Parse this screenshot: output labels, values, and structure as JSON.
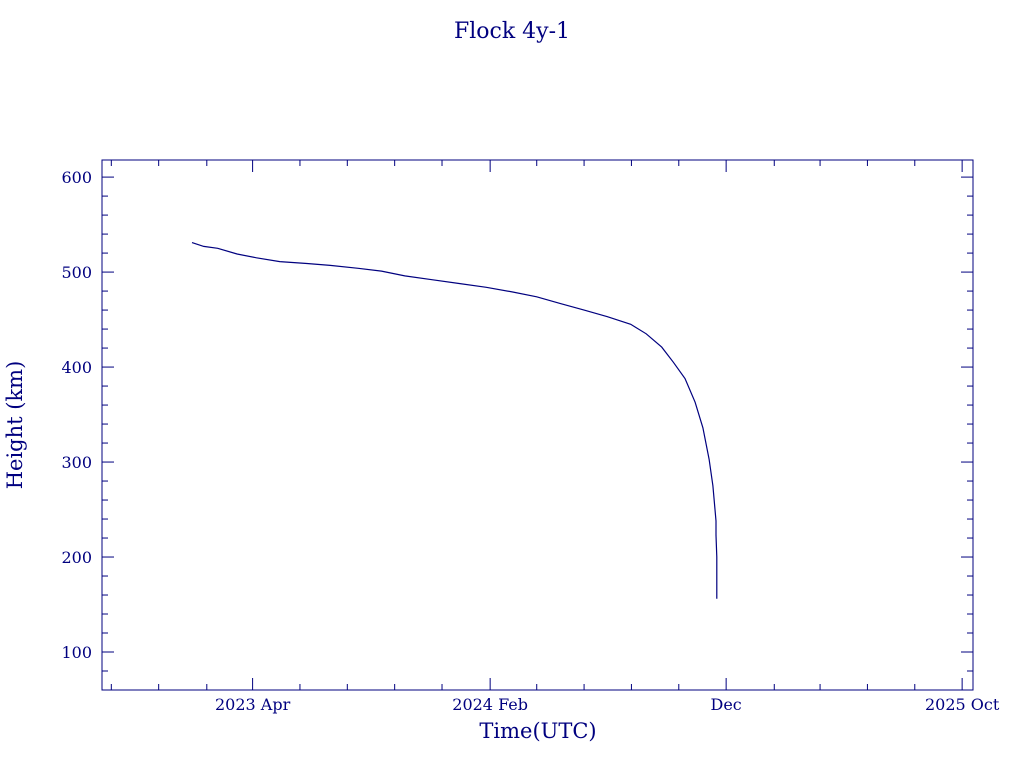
{
  "chart_data": {
    "type": "line",
    "title": "Flock 4y-1",
    "xlabel": "Time(UTC)",
    "ylabel": "Height (km)",
    "color": "#00007f",
    "xlim": [
      "2022-09-19",
      "2025-10-15"
    ],
    "ylim": [
      60,
      618
    ],
    "x_ticks": [
      {
        "date": "2023-04-01",
        "label": "2023 Apr"
      },
      {
        "date": "2024-02-01",
        "label": "2024 Feb"
      },
      {
        "date": "2024-12-01",
        "label": "Dec"
      },
      {
        "date": "2025-10-01",
        "label": "2025 Oct"
      }
    ],
    "y_ticks": [
      100,
      200,
      300,
      400,
      500,
      600
    ],
    "grid": false,
    "series": [
      {
        "points": [
          [
            "2023-01-13",
            531
          ],
          [
            "2023-01-28",
            527
          ],
          [
            "2023-02-15",
            525
          ],
          [
            "2023-03-12",
            519
          ],
          [
            "2023-04-06",
            515
          ],
          [
            "2023-05-06",
            511
          ],
          [
            "2023-06-10",
            509
          ],
          [
            "2023-07-10",
            507
          ],
          [
            "2023-08-15",
            504
          ],
          [
            "2023-09-14",
            501
          ],
          [
            "2023-10-14",
            496
          ],
          [
            "2023-11-18",
            492
          ],
          [
            "2023-12-23",
            488
          ],
          [
            "2024-01-27",
            484
          ],
          [
            "2024-03-01",
            479
          ],
          [
            "2024-04-01",
            474
          ],
          [
            "2024-05-01",
            467
          ],
          [
            "2024-06-01",
            460
          ],
          [
            "2024-07-01",
            453
          ],
          [
            "2024-07-31",
            445
          ],
          [
            "2024-08-20",
            435
          ],
          [
            "2024-09-09",
            421
          ],
          [
            "2024-09-24",
            405
          ],
          [
            "2024-10-09",
            388
          ],
          [
            "2024-10-22",
            363
          ],
          [
            "2024-11-01",
            336
          ],
          [
            "2024-11-09",
            303
          ],
          [
            "2024-11-14",
            275
          ],
          [
            "2024-11-18",
            238
          ],
          [
            "2024-11-18",
            223
          ],
          [
            "2024-11-19",
            200
          ],
          [
            "2024-11-19",
            177
          ],
          [
            "2024-11-19",
            156
          ]
        ]
      }
    ]
  }
}
